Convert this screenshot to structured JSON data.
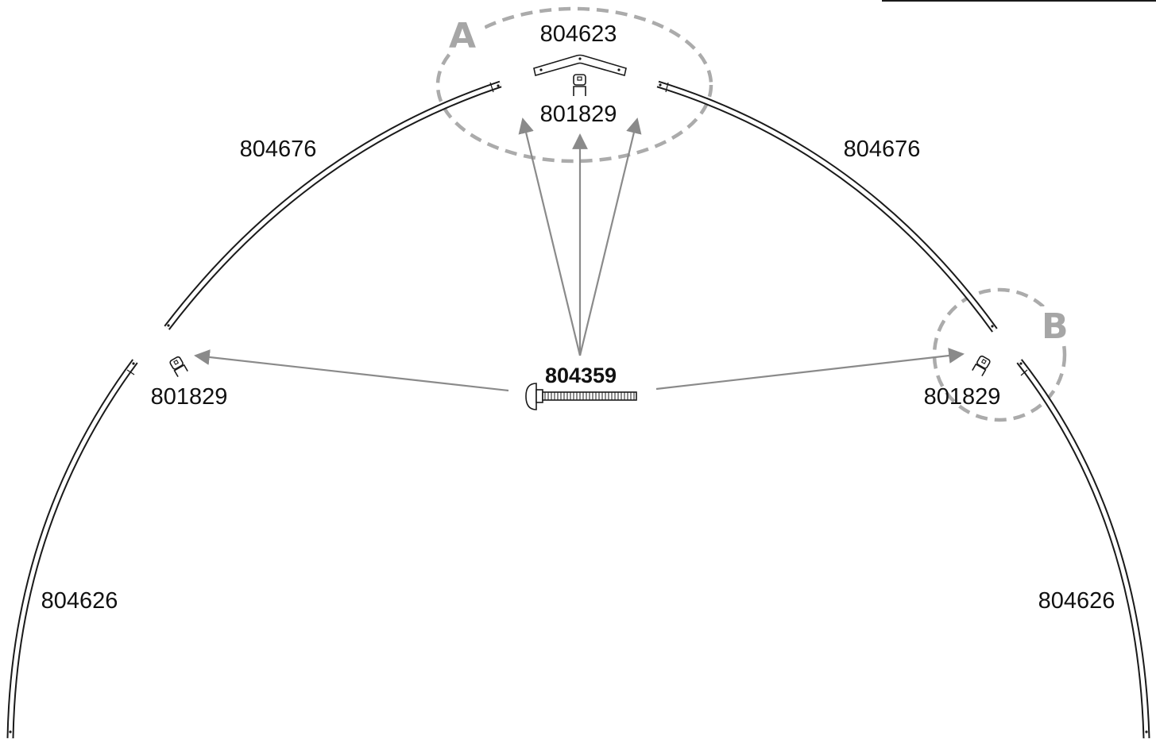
{
  "callouts": {
    "a": "A",
    "b": "B"
  },
  "labels": {
    "top_bracket": "804623",
    "clip_top": "801829",
    "upper_left_tube": "804676",
    "upper_right_tube": "804676",
    "lower_left_tube": "804626",
    "lower_right_tube": "804626",
    "clip_left": "801829",
    "clip_right": "801829",
    "bolt": "804359"
  },
  "colors": {
    "line": "#1a1a1a",
    "arrow": "#8a8a8a",
    "callout": "#a6a6a6"
  }
}
